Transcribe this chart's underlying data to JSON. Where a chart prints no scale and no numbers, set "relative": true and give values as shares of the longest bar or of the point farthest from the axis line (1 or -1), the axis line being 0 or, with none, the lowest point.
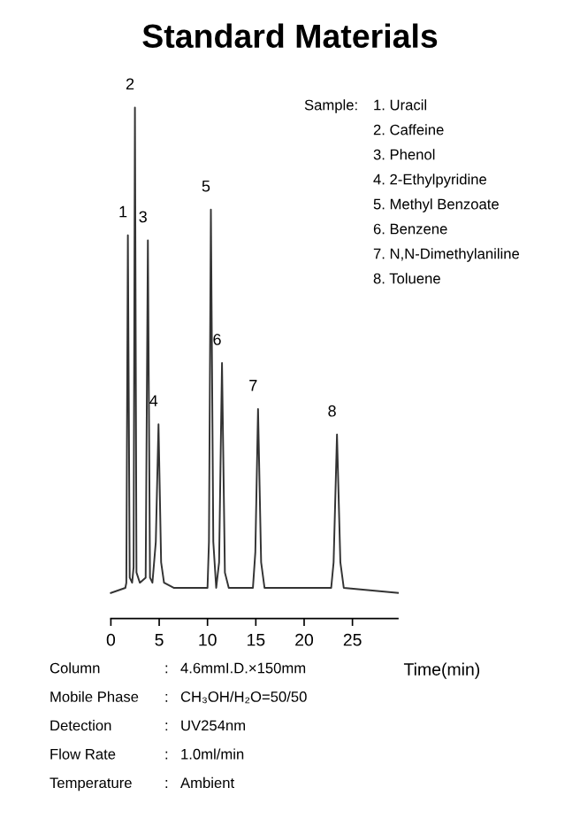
{
  "chart_data": {
    "type": "line",
    "title": "Standard Materials",
    "xlabel": "Time(min)",
    "relative": true,
    "xlim": [
      0,
      29.7
    ],
    "xticks": [
      0,
      5,
      10,
      15,
      20,
      25
    ],
    "grid": false,
    "legend": false,
    "marker": "none",
    "line_style": "solid",
    "series": [
      {
        "color": "#333333",
        "x": [
          0,
          1.5,
          1.6,
          1.76,
          1.95,
          2.2,
          2.35,
          2.49,
          2.65,
          3.0,
          3.6,
          3.83,
          4.05,
          4.3,
          4.65,
          4.93,
          5.2,
          5.5,
          6.5,
          8,
          10.0,
          10.15,
          10.35,
          10.6,
          10.9,
          11.2,
          11.5,
          11.8,
          12.2,
          14.7,
          14.95,
          15.23,
          15.55,
          15.9,
          22.8,
          23.05,
          23.4,
          23.75,
          24.1,
          29.7
        ],
        "values": [
          0.05,
          0.06,
          0.07,
          0.75,
          0.08,
          0.07,
          0.1,
          1,
          0.09,
          0.07,
          0.08,
          0.74,
          0.08,
          0.07,
          0.15,
          0.38,
          0.11,
          0.07,
          0.06,
          0.06,
          0.06,
          0.15,
          0.8,
          0.15,
          0.06,
          0.11,
          0.5,
          0.09,
          0.06,
          0.06,
          0.13,
          0.41,
          0.11,
          0.06,
          0.06,
          0.11,
          0.36,
          0.11,
          0.06,
          0.05
        ]
      }
    ],
    "annotations": [
      {
        "text": "1",
        "x": 1.76,
        "y": 0.75
      },
      {
        "text": "2",
        "x": 2.49,
        "y": 1
      },
      {
        "text": "3",
        "x": 3.83,
        "y": 0.74
      },
      {
        "text": "4",
        "x": 4.93,
        "y": 0.38
      },
      {
        "text": "5",
        "x": 10.35,
        "y": 0.8
      },
      {
        "text": "6",
        "x": 11.5,
        "y": 0.5
      },
      {
        "text": "7",
        "x": 15.23,
        "y": 0.41
      },
      {
        "text": "8",
        "x": 23.4,
        "y": 0.36
      },
      "Sample:",
      "1. Uracil",
      "2. Caffeine",
      "3. Phenol",
      "4. 2-Ethylpyridine",
      "5. Methyl Benzoate",
      "6. Benzene",
      "7. N,N-Dimethylaniline",
      "8. Toluene",
      "Column\t:\t4.6mmI.D.×150mm",
      "Mobile Phase\t:\tCH₃OH/H₂O=50/50",
      "Detection\t:\tUV254nm",
      "Flow Rate\t:\t1.0ml/min",
      "Temperature\t:\tAmbient"
    ]
  }
}
